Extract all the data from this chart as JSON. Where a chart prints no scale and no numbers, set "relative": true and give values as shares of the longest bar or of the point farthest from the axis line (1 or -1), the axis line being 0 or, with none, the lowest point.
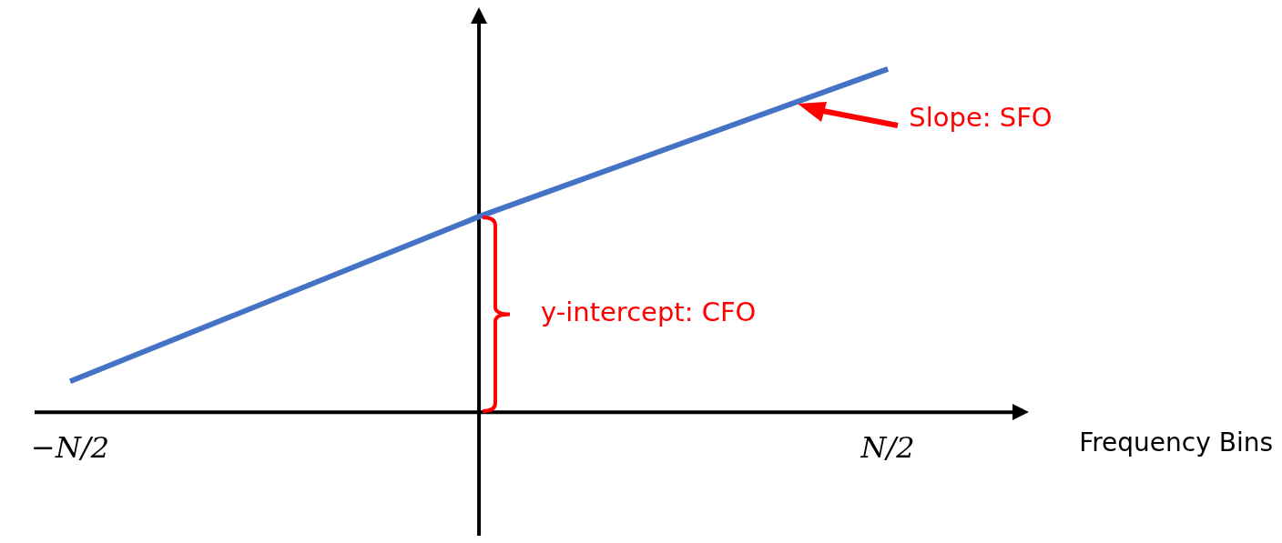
{
  "chart_data": {
    "type": "line",
    "relative": true,
    "xlabel": "Frequency Bins",
    "categories": [
      "−N/2",
      null,
      "N/2"
    ],
    "series": [
      {
        "color": "#4472c4",
        "values": [
          0.09,
          0.57,
          1
        ]
      }
    ],
    "marker": "none",
    "annotations": [
      "Slope: SFO",
      "y-intercept: CFO"
    ]
  }
}
